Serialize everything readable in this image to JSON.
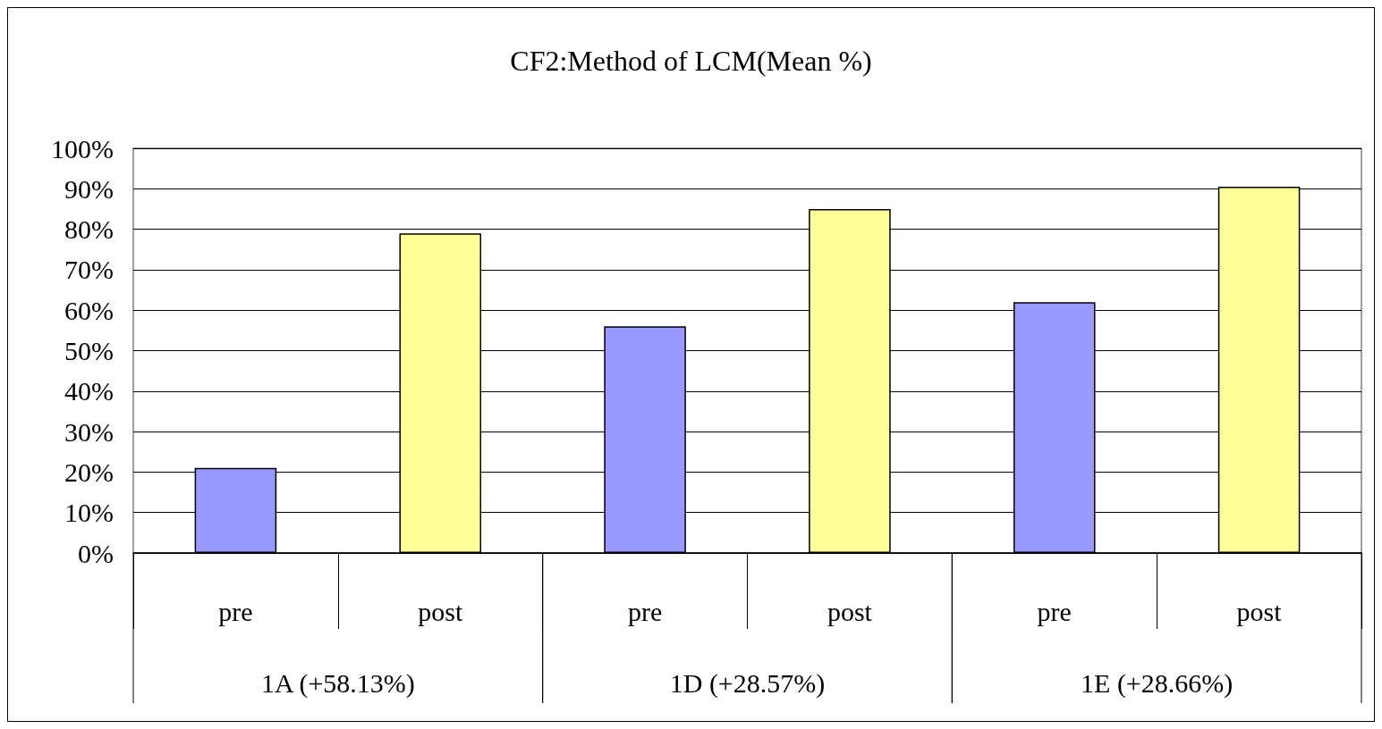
{
  "chart_data": {
    "type": "bar",
    "title": "CF2:Method of LCM(Mean %)",
    "categories": [
      "pre",
      "post",
      "pre",
      "post",
      "pre",
      "post"
    ],
    "values": [
      21,
      79,
      56,
      85,
      62,
      90.5
    ],
    "colors": [
      "#9999ff",
      "#ffff99",
      "#9999ff",
      "#ffff99",
      "#9999ff",
      "#ffff99"
    ],
    "ylim": [
      0,
      100
    ],
    "yticks": [
      {
        "value": 0,
        "label": "0%"
      },
      {
        "value": 10,
        "label": "10%"
      },
      {
        "value": 20,
        "label": "20%"
      },
      {
        "value": 30,
        "label": "30%"
      },
      {
        "value": 40,
        "label": "40%"
      },
      {
        "value": 50,
        "label": "50%"
      },
      {
        "value": 60,
        "label": "60%"
      },
      {
        "value": 70,
        "label": "70%"
      },
      {
        "value": 80,
        "label": "80%"
      },
      {
        "value": 90,
        "label": "90%"
      },
      {
        "value": 100,
        "label": "100%"
      }
    ],
    "annotations": [
      "1A (+58.13%)",
      "1D (+28.57%)",
      "1E (+28.66%)"
    ],
    "grid": "y"
  }
}
